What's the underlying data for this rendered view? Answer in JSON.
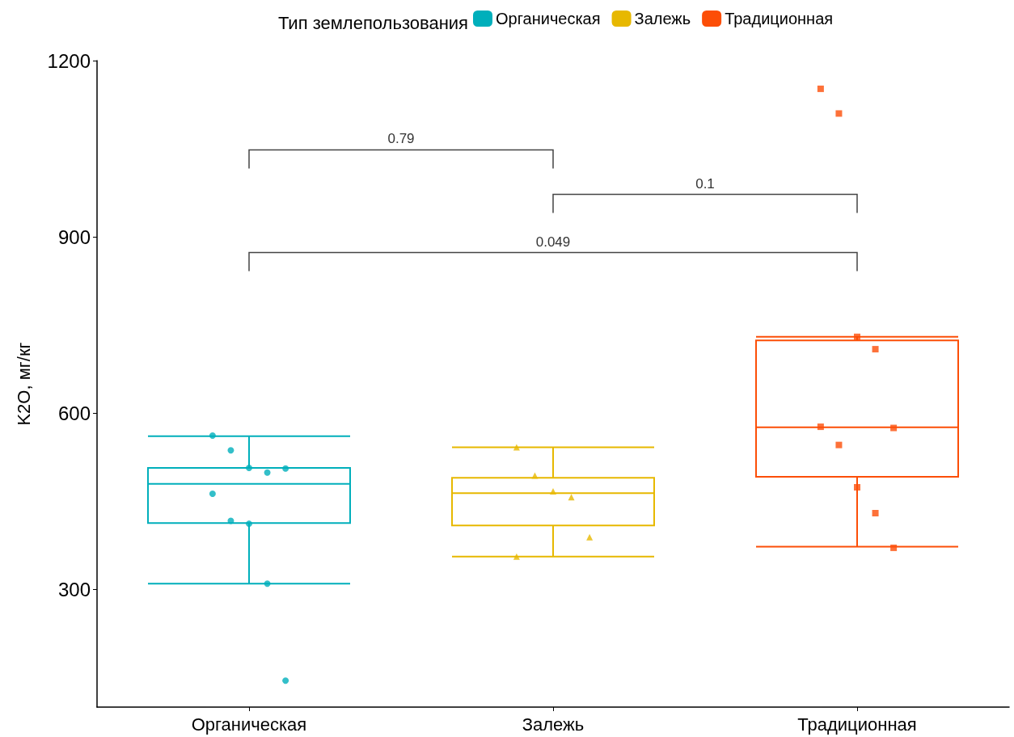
{
  "chart_data": {
    "type": "box",
    "ylabel": "K2O, мг/кг",
    "legend_title": "Тип землепользования",
    "categories": [
      "Органическая",
      "Залежь",
      "Традиционная"
    ],
    "ylim": [
      100,
      1200
    ],
    "yticks": [
      300,
      600,
      900,
      1200
    ],
    "grid": false,
    "legend": "top",
    "series": [
      {
        "name": "Органическая",
        "color": "#00afbb",
        "x": [
          "Органическая"
        ],
        "boxes": [
          {
            "low": 310,
            "q1": 413,
            "median": 480,
            "q3": 507,
            "high": 561
          }
        ]
      },
      {
        "name": "Залежь",
        "color": "#e7b800",
        "x": [
          "Залежь"
        ],
        "boxes": [
          {
            "low": 356,
            "q1": 409,
            "median": 464,
            "q3": 490,
            "high": 542
          }
        ]
      },
      {
        "name": "Традиционная",
        "color": "#fc4e07",
        "x": [
          "Традиционная"
        ],
        "boxes": [
          {
            "low": 373,
            "q1": 492,
            "median": 576,
            "q3": 724,
            "high": 730
          }
        ]
      },
      {
        "type": "scatter",
        "marker": "circle",
        "color": "#00afbb",
        "x": [
          "Органическая",
          "Органическая",
          "Органическая",
          "Органическая",
          "Органическая",
          "Органическая",
          "Органическая",
          "Органическая",
          "Органическая",
          "Органическая"
        ],
        "values": [
          562,
          537,
          507,
          499,
          506,
          463,
          417,
          412,
          310,
          145
        ]
      },
      {
        "type": "scatter",
        "marker": "triangle",
        "color": "#e7b800",
        "x": [
          "Залежь",
          "Залежь",
          "Залежь",
          "Залежь",
          "Залежь",
          "Залежь"
        ],
        "values": [
          542,
          494,
          467,
          457,
          389,
          356
        ]
      },
      {
        "type": "scatter",
        "marker": "square",
        "color": "#fc4e07",
        "x": [
          "Традиционная",
          "Традиционная",
          "Традиционная",
          "Традиционная",
          "Традиционная",
          "Традиционная",
          "Традиционная",
          "Традиционная",
          "Традиционная",
          "Традиционная"
        ],
        "values": [
          1152,
          1110,
          730,
          709,
          575,
          577,
          546,
          474,
          430,
          371
        ]
      }
    ],
    "annotations": [
      "0.79",
      "0.1",
      "0.049"
    ]
  }
}
